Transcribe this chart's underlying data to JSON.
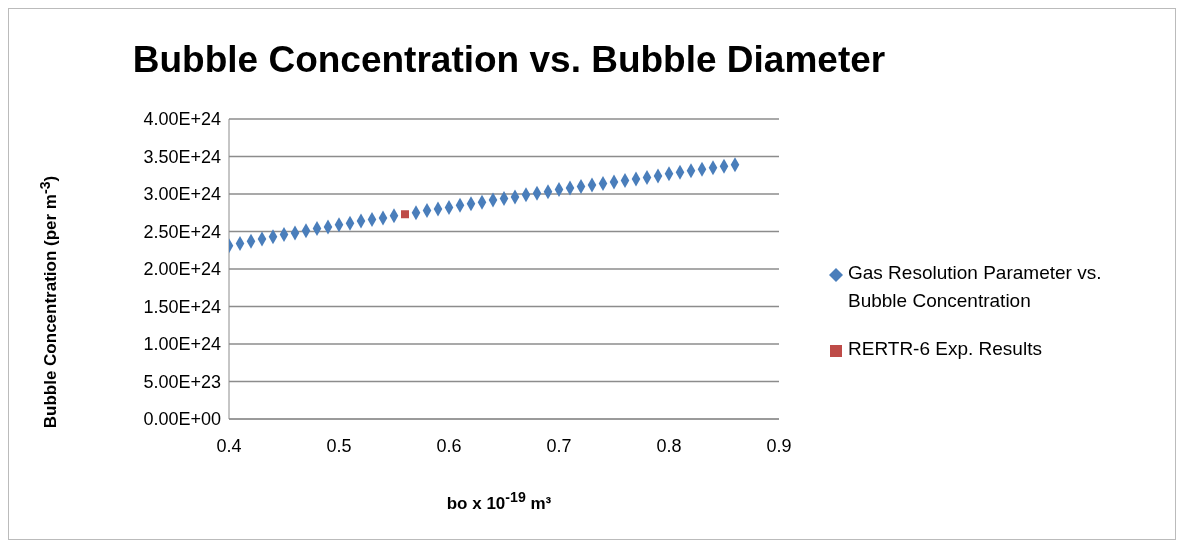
{
  "chart_data": {
    "type": "scatter",
    "title": "Bubble Concentration vs. Bubble Diameter",
    "xlabel": "bo x 10$^{-19}$ m³",
    "ylabel": "Bubble Concentration (per m$^{-3}$)",
    "xlim": [
      0.4,
      0.9
    ],
    "xticks": [
      0.4,
      0.5,
      0.6,
      0.7,
      0.8,
      0.9
    ],
    "ylim": [
      0,
      4e+24
    ],
    "yticks": [
      {
        "value": 0,
        "label": "0.00E+00"
      },
      {
        "value": 5e+23,
        "label": "5.00E+23"
      },
      {
        "value": 1e+24,
        "label": "1.00E+24"
      },
      {
        "value": 1.5e+24,
        "label": "1.50E+24"
      },
      {
        "value": 2e+24,
        "label": "2.00E+24"
      },
      {
        "value": 2.5e+24,
        "label": "2.50E+24"
      },
      {
        "value": 3e+24,
        "label": "3.00E+24"
      },
      {
        "value": 3.5e+24,
        "label": "3.50E+24"
      },
      {
        "value": 4e+24,
        "label": "4.00E+24"
      }
    ],
    "grid": "y",
    "legend": "right",
    "series": [
      {
        "name": "Gas Resolution Parameter vs. Bubble Concentration",
        "color": "#4a7ebb",
        "marker": "diamond",
        "x": [
          0.4,
          0.41,
          0.42,
          0.43,
          0.44,
          0.45,
          0.46,
          0.47,
          0.48,
          0.49,
          0.5,
          0.51,
          0.52,
          0.53,
          0.54,
          0.55,
          0.56,
          0.57,
          0.58,
          0.59,
          0.6,
          0.61,
          0.62,
          0.63,
          0.64,
          0.65,
          0.66,
          0.67,
          0.68,
          0.69,
          0.7,
          0.71,
          0.72,
          0.73,
          0.74,
          0.75,
          0.76,
          0.77,
          0.78,
          0.79,
          0.8,
          0.81,
          0.82,
          0.83,
          0.84,
          0.85,
          0.86
        ],
        "values": [
          2.31e+24,
          2.34e+24,
          2.37e+24,
          2.4e+24,
          2.43e+24,
          2.46e+24,
          2.48e+24,
          2.51e+24,
          2.54e+24,
          2.56e+24,
          2.59e+24,
          2.61e+24,
          2.64e+24,
          2.66e+24,
          2.68e+24,
          2.71e+24,
          null,
          2.75e+24,
          2.78e+24,
          2.8e+24,
          2.82e+24,
          2.85e+24,
          2.87e+24,
          2.89e+24,
          2.92e+24,
          2.94e+24,
          2.96e+24,
          2.99e+24,
          3.01e+24,
          3.03e+24,
          3.06e+24,
          3.08e+24,
          3.1e+24,
          3.12e+24,
          3.14e+24,
          3.16e+24,
          3.18e+24,
          3.2e+24,
          3.22e+24,
          3.24e+24,
          3.27e+24,
          3.29e+24,
          3.31e+24,
          3.33e+24,
          3.35e+24,
          3.37e+24,
          3.39e+24
        ]
      },
      {
        "name": "RERTR-6 Exp. Results",
        "color": "#be4b48",
        "marker": "square",
        "x": [
          0.56
        ],
        "values": [
          2.73e+24
        ]
      }
    ]
  }
}
